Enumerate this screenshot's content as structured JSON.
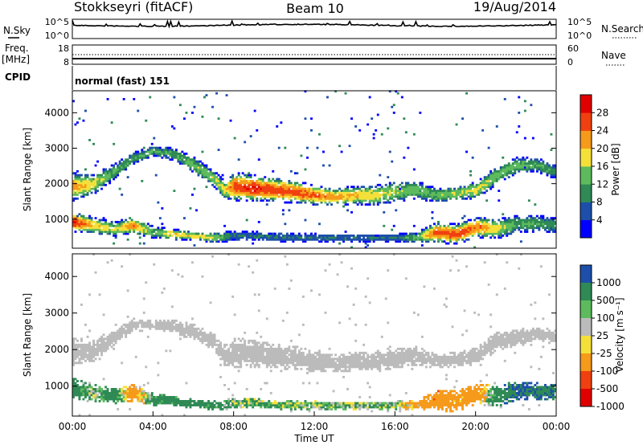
{
  "header": {
    "station": "Stokkseyri (fitACF)",
    "beam": "Beam 10",
    "date": "19/Aug/2014"
  },
  "summary_panel": {
    "left_label": "N.Sky",
    "right_label": "N.Search",
    "left_ticks": [
      "10^5",
      "10^0"
    ],
    "right_ticks": [
      "10^5",
      "10^0"
    ]
  },
  "freq_panel": {
    "left_label_top": "Freq.",
    "left_label_unit": "[MHz]",
    "right_label": "Nave",
    "left_ticks": [
      "18",
      "8"
    ],
    "right_ticks": [
      "60",
      "0"
    ]
  },
  "cpid": {
    "label": "CPID",
    "value": "normal (fast) 151"
  },
  "colors": {
    "power_scale": [
      "#0000ff",
      "#1d4faa",
      "#2f8a55",
      "#5dbb5d",
      "#f5e03a",
      "#f59a1a",
      "#f04010",
      "#e00000"
    ],
    "velocity_scale": [
      "#1d4faa",
      "#2f8a55",
      "#5dbb5d",
      "#bbbbbb",
      "#f5e03a",
      "#f59a1a",
      "#f04010",
      "#e00000"
    ],
    "ground_scatter": "#bbbbbb"
  },
  "chart_data": [
    {
      "type": "heatmap",
      "name": "power",
      "xlabel": "",
      "ylabel": "Slant Range [km]",
      "xlim": [
        0,
        24
      ],
      "ylim": [
        180,
        4620
      ],
      "yticks": [
        1000,
        2000,
        3000,
        4000
      ],
      "colorbar_label": "Power [dB]",
      "colorbar_ticks": [
        "4",
        "8",
        "12",
        "16",
        "20",
        "24",
        "28"
      ],
      "colorbar_range": [
        0,
        32
      ],
      "bands": [
        {
          "name": "main-echo",
          "x": [
            0,
            1,
            2,
            3,
            4,
            5,
            6,
            7,
            7.5,
            8,
            9,
            10,
            11,
            12,
            13,
            14,
            15,
            16,
            17,
            18,
            19,
            20,
            21,
            22,
            23,
            24
          ],
          "center": [
            1900,
            1950,
            2300,
            2700,
            2900,
            2800,
            2500,
            2100,
            1800,
            1900,
            1850,
            1800,
            1750,
            1650,
            1600,
            1650,
            1650,
            1750,
            1800,
            1650,
            1700,
            1800,
            2200,
            2500,
            2500,
            2300
          ],
          "width": [
            700,
            500,
            400,
            300,
            250,
            300,
            400,
            400,
            450,
            700,
            650,
            600,
            550,
            500,
            450,
            450,
            500,
            500,
            450,
            350,
            350,
            400,
            450,
            400,
            350,
            350
          ],
          "peak_db": [
            22,
            18,
            12,
            12,
            12,
            12,
            14,
            16,
            18,
            26,
            28,
            26,
            26,
            24,
            22,
            20,
            18,
            16,
            14,
            14,
            16,
            18,
            14,
            14,
            12,
            12
          ]
        },
        {
          "name": "near-echo",
          "x": [
            0,
            1,
            2,
            3,
            4,
            5,
            6,
            7,
            8,
            12,
            16,
            17,
            18,
            19,
            20,
            21,
            22,
            23,
            24
          ],
          "center": [
            900,
            800,
            700,
            800,
            600,
            550,
            500,
            450,
            500,
            450,
            450,
            450,
            600,
            550,
            750,
            700,
            850,
            850,
            800
          ],
          "width": [
            500,
            400,
            350,
            400,
            300,
            250,
            200,
            250,
            250,
            200,
            200,
            250,
            500,
            500,
            500,
            500,
            450,
            400,
            400
          ],
          "peak_db": [
            28,
            20,
            16,
            24,
            12,
            20,
            18,
            16,
            8,
            8,
            8,
            14,
            26,
            26,
            24,
            18,
            12,
            12,
            10
          ]
        }
      ]
    },
    {
      "type": "heatmap",
      "name": "velocity",
      "xlabel": "Time UT",
      "ylabel": "Slant Range [km]",
      "xlim": [
        0,
        24
      ],
      "ylim": [
        180,
        4620
      ],
      "xticks": [
        "00:00",
        "04:00",
        "08:00",
        "12:00",
        "16:00",
        "20:00",
        "00:00"
      ],
      "yticks": [
        1000,
        2000,
        3000,
        4000
      ],
      "colorbar_label": "Velocity [m s⁻¹]",
      "colorbar_ticks": [
        "1000",
        "500",
        "100",
        "25",
        "-25",
        "-100",
        "-500",
        "-1000"
      ],
      "bands": [
        {
          "name": "ground-scatter",
          "x": [
            0,
            1,
            2,
            3,
            4,
            5,
            6,
            7,
            7.5,
            8,
            9,
            10,
            11,
            12,
            13,
            14,
            15,
            16,
            17,
            18,
            19,
            20,
            21,
            22,
            23,
            24
          ],
          "center": [
            1900,
            1950,
            2300,
            2650,
            2650,
            2600,
            2450,
            2150,
            1800,
            1900,
            1850,
            1800,
            1750,
            1650,
            1600,
            1650,
            1650,
            1750,
            1800,
            1650,
            1700,
            1800,
            2200,
            2300,
            2400,
            2300
          ],
          "width": [
            700,
            500,
            400,
            300,
            250,
            300,
            400,
            400,
            450,
            700,
            650,
            600,
            550,
            500,
            450,
            450,
            500,
            500,
            450,
            350,
            350,
            400,
            450,
            400,
            350,
            350
          ]
        },
        {
          "name": "near-echo",
          "x": [
            0,
            1,
            2,
            3,
            4,
            5,
            6,
            7,
            8,
            12,
            16,
            17,
            18,
            19,
            20,
            21,
            22,
            23,
            24
          ],
          "center": [
            900,
            800,
            700,
            800,
            600,
            550,
            500,
            450,
            500,
            450,
            450,
            450,
            600,
            550,
            750,
            700,
            850,
            850,
            800
          ],
          "width": [
            500,
            400,
            350,
            400,
            300,
            250,
            200,
            250,
            250,
            200,
            200,
            250,
            500,
            500,
            500,
            500,
            450,
            400,
            400
          ],
          "velocity": [
            300,
            50,
            300,
            -300,
            200,
            200,
            300,
            200,
            100,
            50,
            50,
            -200,
            -400,
            -200,
            -300,
            300,
            500,
            500,
            400
          ]
        }
      ]
    }
  ]
}
